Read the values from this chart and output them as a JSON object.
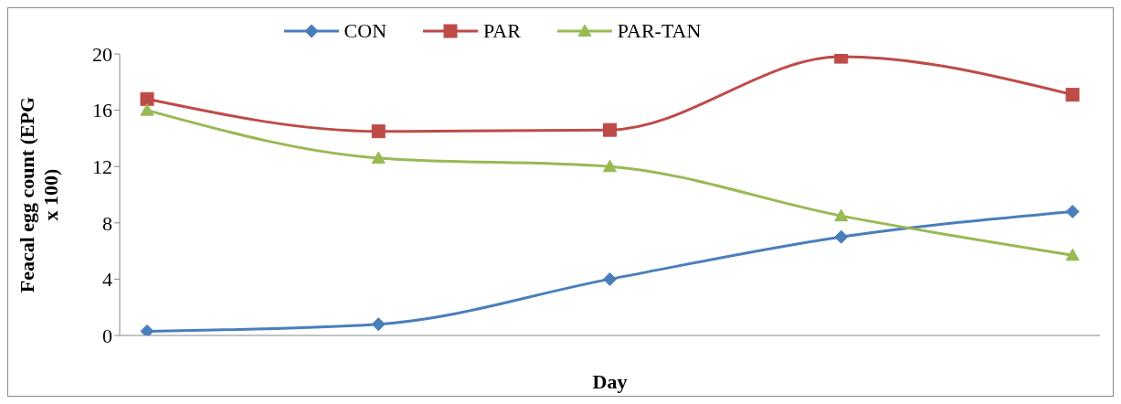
{
  "chart_data": {
    "type": "line",
    "xlabel": "Day",
    "ylabel": "Feacal egg count (EPG x 100)",
    "categories": [
      null,
      null,
      null,
      null,
      null
    ],
    "series": [
      {
        "name": "CON",
        "color": "#4a7ebb",
        "values": [
          0.3,
          0.8,
          4,
          7,
          8.8
        ],
        "marker": "diamond"
      },
      {
        "name": "PAR",
        "color": "#be4b48",
        "values": [
          16.8,
          14.5,
          14.6,
          19.8,
          17.1
        ],
        "marker": "square"
      },
      {
        "name": "PAR-TAN",
        "color": "#98b954",
        "values": [
          16,
          12.6,
          12,
          8.5,
          5.7
        ],
        "marker": "triangle"
      }
    ],
    "ylim": [
      0,
      20
    ],
    "yticks": [
      0,
      4,
      8,
      12,
      16,
      20
    ],
    "legend": "top",
    "line_style": "solid"
  }
}
